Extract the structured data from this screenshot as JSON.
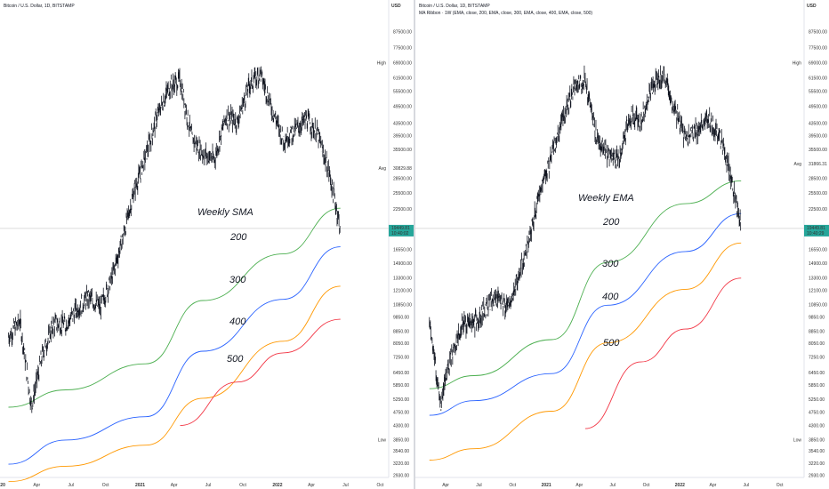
{
  "colors": {
    "candle": "#131722",
    "ma200": "#4caf50",
    "ma300": "#2962ff",
    "ma400": "#ff9800",
    "ma500": "#f23645",
    "price_badge": "#26a69a",
    "axis_text": "#333333",
    "blue_label": "#2962ff",
    "guide_line": "#c8c8c8"
  },
  "chart_data": [
    {
      "type": "line",
      "header": "Bitcoin / U.S. Dollar, 1D, BITSTAMP",
      "title": "Weekly SMA",
      "y_axis": {
        "unit": "USD",
        "scale": "log",
        "range": [
          2930,
          87500
        ],
        "ticks": [
          "87500.00",
          "77500.00",
          "69000.00",
          "61500.00",
          "55500.00",
          "49500.00",
          "43500.00",
          "39500.00",
          "35500.00",
          "30829.88",
          "28500.00",
          "25500.00",
          "22500.00",
          "19449.81",
          "16550.00",
          "14900.00",
          "13300.00",
          "12100.00",
          "10850.00",
          "9850.00",
          "8850.00",
          "8050.00",
          "7250.00",
          "6450.00",
          "5850.00",
          "5250.00",
          "4750.00",
          "4300.00",
          "3850.00",
          "3540.00",
          "3220.00",
          "2930.00"
        ]
      },
      "x_axis": {
        "ticks": [
          "20",
          "Apr",
          "Jul",
          "Oct",
          "2021",
          "Apr",
          "Jul",
          "Oct",
          "2022",
          "Apr",
          "Jul",
          "Oct"
        ]
      },
      "markers": [
        {
          "label": "High",
          "value": 69000.0,
          "text": "69000.00"
        },
        {
          "label": "Avg",
          "value": 30829.88,
          "text": "30829.88"
        },
        {
          "label": "Low",
          "value": 3850.0,
          "text": "3850.00"
        }
      ],
      "last_price": {
        "price": "19449.81",
        "countdown": "10:40:02"
      },
      "price_series": {
        "name": "Bitcoin / U.S. Dollar",
        "x": [
          "2020-01",
          "2020-02",
          "2020-03",
          "2020-04",
          "2020-05",
          "2020-06",
          "2020-07",
          "2020-08",
          "2020-09",
          "2020-10",
          "2020-11",
          "2020-12",
          "2021-01",
          "2021-02",
          "2021-03",
          "2021-04",
          "2021-05",
          "2021-06",
          "2021-07",
          "2021-08",
          "2021-09",
          "2021-10",
          "2021-11",
          "2021-12",
          "2022-01",
          "2022-02",
          "2022-03",
          "2022-04",
          "2022-05",
          "2022-06"
        ],
        "values": [
          8500,
          9600,
          5000,
          7500,
          9400,
          9300,
          10500,
          11500,
          10600,
          13200,
          18200,
          26000,
          34000,
          46000,
          57000,
          60500,
          39000,
          34500,
          33000,
          46000,
          44000,
          58000,
          64000,
          49000,
          38500,
          41000,
          45000,
          40000,
          30000,
          19500
        ]
      },
      "series": [
        {
          "name": "200",
          "x": [
            "2020-01",
            "2020-06",
            "2021-01",
            "2021-06",
            "2022-01",
            "2022-06"
          ],
          "values": [
            4950,
            5650,
            6900,
            11200,
            16000,
            22700
          ]
        },
        {
          "name": "300",
          "x": [
            "2020-01",
            "2020-06",
            "2021-01",
            "2021-06",
            "2022-01",
            "2022-06"
          ],
          "values": [
            3200,
            3850,
            4600,
            7600,
            11300,
            16900
          ]
        },
        {
          "name": "400",
          "x": [
            "2020-01",
            "2020-06",
            "2021-01",
            "2021-06",
            "2022-01",
            "2022-06"
          ],
          "values": [
            2800,
            3150,
            3700,
            5300,
            8200,
            12500
          ]
        },
        {
          "name": "500",
          "x": [
            "2021-04",
            "2021-09",
            "2022-01",
            "2022-06"
          ],
          "values": [
            4300,
            6000,
            7500,
            9700
          ]
        }
      ],
      "xlabel": "",
      "ylabel": "USD",
      "grid": false
    },
    {
      "type": "line",
      "header": "Bitcoin / U.S. Dollar, 1D, BITSTAMP",
      "subheader": "MA Ribbon · 1W (EMA, close, 200, EMA, close, 300, EMA, close, 400, EMA, close, 500)",
      "title": "Weekly EMA",
      "y_axis": {
        "unit": "USD",
        "scale": "log",
        "range": [
          2930,
          87500
        ],
        "ticks": [
          "87500.00",
          "77500.00",
          "69000.00",
          "61500.00",
          "55500.00",
          "49500.00",
          "43500.00",
          "39500.00",
          "35500.00",
          "31866.31",
          "28500.00",
          "25500.00",
          "22500.00",
          "19449.81",
          "16550.00",
          "14900.00",
          "13300.00",
          "12100.00",
          "10850.00",
          "9850.00",
          "8850.00",
          "8050.00",
          "7250.00",
          "6450.00",
          "5850.00",
          "5250.00",
          "4750.00",
          "4300.00",
          "3850.00",
          "3540.00",
          "3220.00",
          "2930.00"
        ]
      },
      "x_axis": {
        "ticks": [
          "Apr",
          "Jul",
          "Oct",
          "2021",
          "Apr",
          "Jul",
          "Oct",
          "2022",
          "Apr",
          "Jul",
          "Oct"
        ]
      },
      "markers": [
        {
          "label": "High",
          "value": 69000.0,
          "text": "69000.00"
        },
        {
          "label": "Avg",
          "value": 31866.31,
          "text": "31866.31"
        },
        {
          "label": "Low",
          "value": 3850.0,
          "text": "3850.00"
        }
      ],
      "last_price": {
        "price": "19449.81",
        "countdown": "10:40:29"
      },
      "price_series": {
        "name": "Bitcoin / U.S. Dollar",
        "x": [
          "2020-02",
          "2020-03",
          "2020-04",
          "2020-05",
          "2020-06",
          "2020-07",
          "2020-08",
          "2020-09",
          "2020-10",
          "2020-11",
          "2020-12",
          "2021-01",
          "2021-02",
          "2021-03",
          "2021-04",
          "2021-05",
          "2021-06",
          "2021-07",
          "2021-08",
          "2021-09",
          "2021-10",
          "2021-11",
          "2021-12",
          "2022-01",
          "2022-02",
          "2022-03",
          "2022-04",
          "2022-05",
          "2022-06"
        ],
        "values": [
          9600,
          5000,
          7500,
          9400,
          9300,
          10500,
          11500,
          10600,
          13200,
          18200,
          26000,
          34000,
          46000,
          57000,
          60500,
          39000,
          34500,
          33000,
          46000,
          44000,
          58000,
          64000,
          49000,
          38500,
          41000,
          45000,
          40000,
          30000,
          19500
        ]
      },
      "series": [
        {
          "name": "200",
          "x": [
            "2020-02",
            "2020-06",
            "2021-01",
            "2021-06",
            "2022-01",
            "2022-06"
          ],
          "values": [
            5700,
            6300,
            8300,
            15000,
            23500,
            28000
          ]
        },
        {
          "name": "300",
          "x": [
            "2020-02",
            "2020-06",
            "2021-01",
            "2021-06",
            "2022-01",
            "2022-06"
          ],
          "values": [
            4650,
            5200,
            6400,
            10800,
            16300,
            21800
          ]
        },
        {
          "name": "400",
          "x": [
            "2020-02",
            "2020-06",
            "2021-01",
            "2021-06",
            "2022-01",
            "2022-06"
          ],
          "values": [
            3300,
            3600,
            4800,
            8100,
            12200,
            17400
          ]
        },
        {
          "name": "500",
          "x": [
            "2021-04",
            "2021-09",
            "2022-01",
            "2022-06"
          ],
          "values": [
            4200,
            7000,
            9000,
            13300
          ]
        }
      ],
      "xlabel": "",
      "ylabel": "USD",
      "grid": false
    }
  ]
}
